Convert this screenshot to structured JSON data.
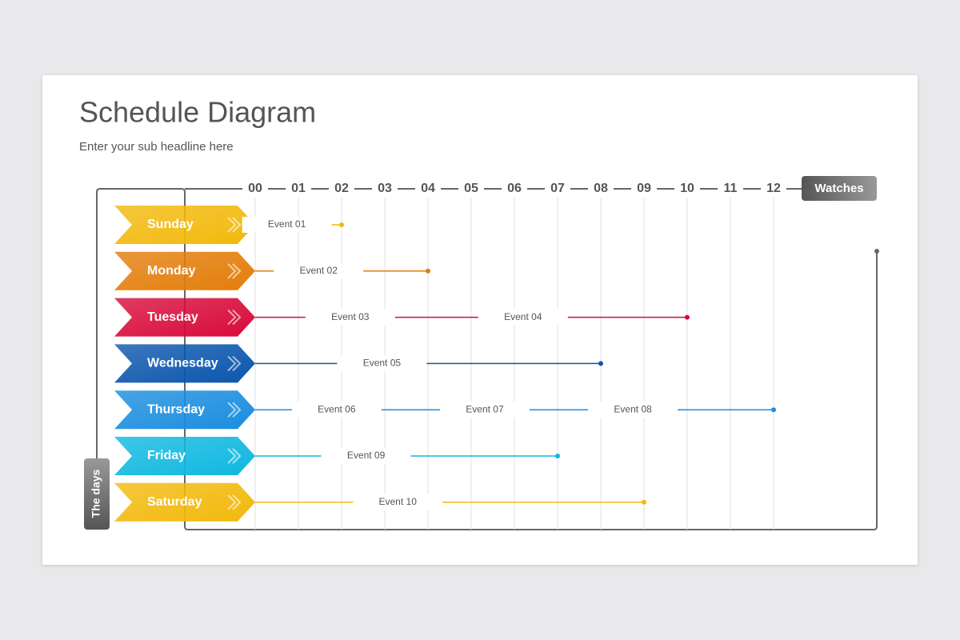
{
  "header": {
    "title": "Schedule Diagram",
    "subtitle": "Enter your sub headline here"
  },
  "axis": {
    "hours_label": "Watches",
    "days_label": "The days",
    "hours": [
      "00",
      "01",
      "02",
      "03",
      "04",
      "05",
      "06",
      "07",
      "08",
      "09",
      "10",
      "11",
      "12"
    ]
  },
  "days": [
    {
      "name": "Sunday",
      "color": "#f2b90c",
      "end": 2,
      "events": [
        "Event 01"
      ]
    },
    {
      "name": "Monday",
      "color": "#e37d0a",
      "end": 4,
      "events": [
        "Event 02"
      ]
    },
    {
      "name": "Tuesday",
      "color": "#d80a3a",
      "end": 10,
      "events": [
        "Event 03",
        "Event 04"
      ]
    },
    {
      "name": "Wednesday",
      "color": "#0b56ad",
      "end": 8,
      "events": [
        "Event 05"
      ]
    },
    {
      "name": "Thursday",
      "color": "#1a8ddf",
      "end": 12,
      "events": [
        "Event 06",
        "Event 07",
        "Event 08"
      ]
    },
    {
      "name": "Friday",
      "color": "#0fb8e0",
      "end": 7,
      "events": [
        "Event 09"
      ]
    },
    {
      "name": "Saturday",
      "color": "#f2b90c",
      "end": 9,
      "events": [
        "Event 10"
      ]
    }
  ]
}
